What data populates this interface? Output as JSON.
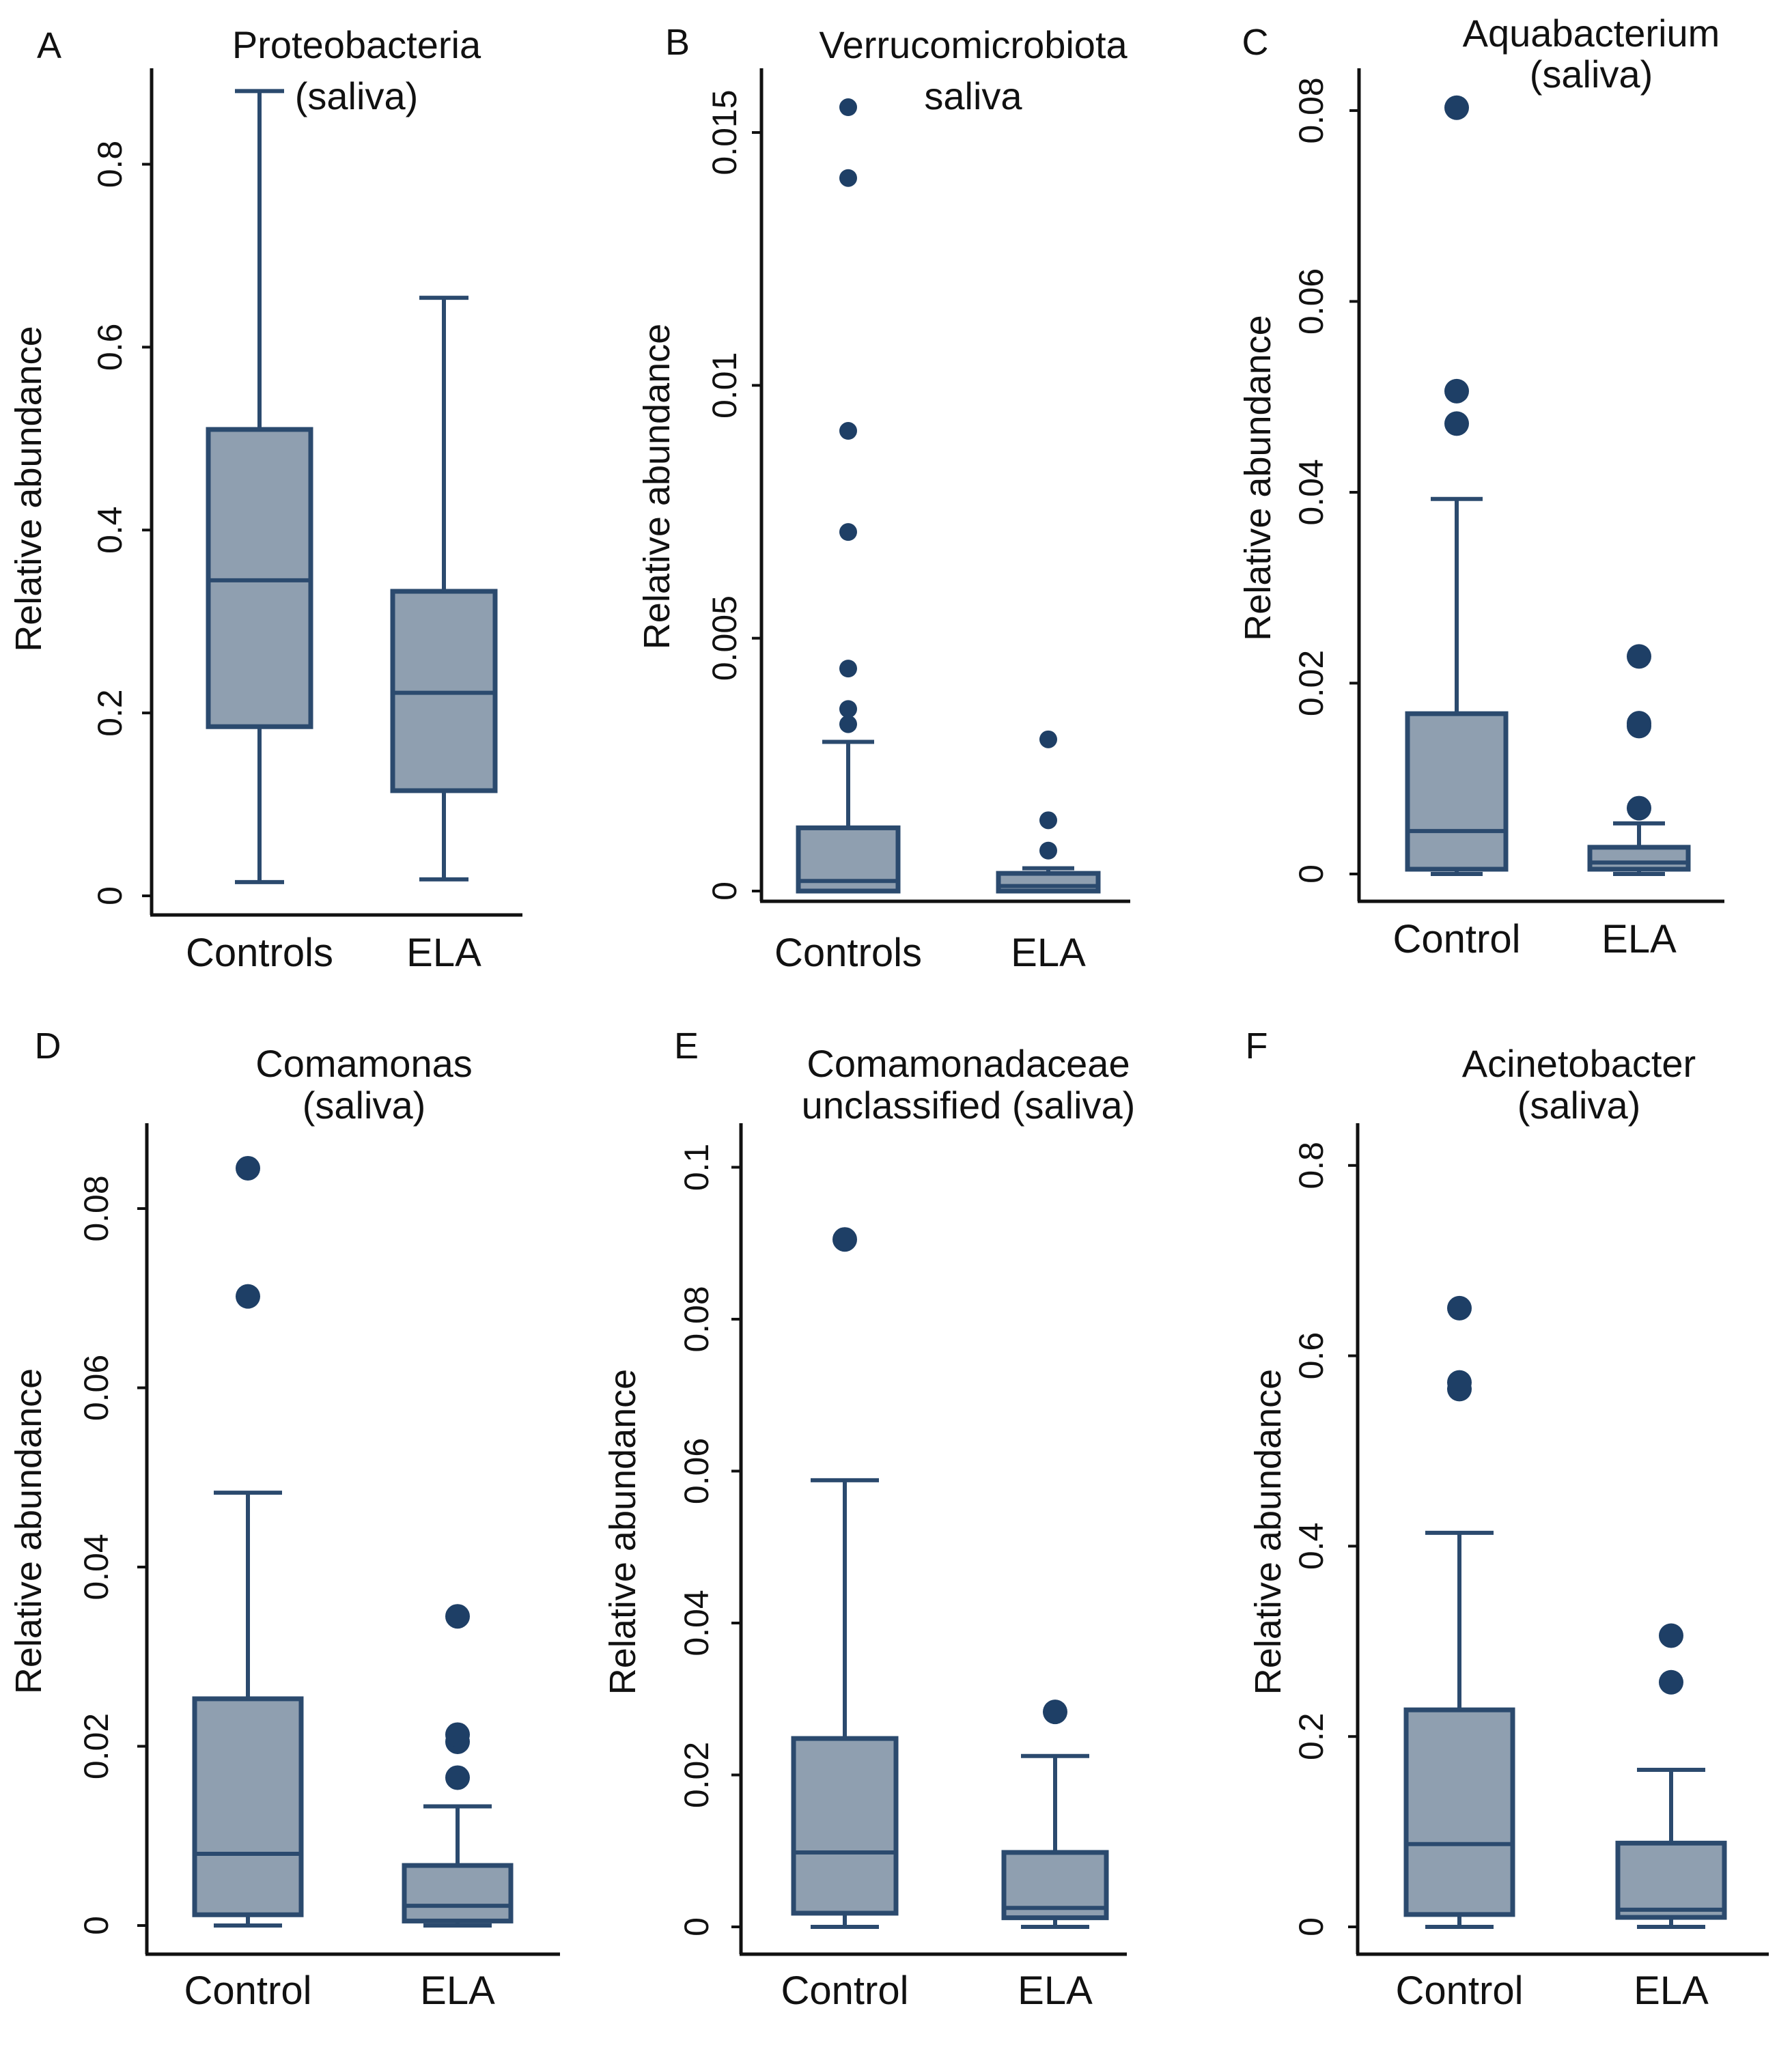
{
  "figure": {
    "box_fill": "#8f9fb0",
    "line_color": "#2b4a6e",
    "outlier_color": "#1e3f66",
    "axis_color": "#111111"
  },
  "chart_data": [
    {
      "panel": "A",
      "type": "box",
      "title_lines": [
        "Proteobacteria",
        "(saliva)"
      ],
      "ylabel": "Relative abundance",
      "categories": [
        "Controls",
        "ELA"
      ],
      "ylim": [
        0,
        0.89
      ],
      "yticks": [
        0,
        0.2,
        0.4,
        0.6,
        0.8
      ],
      "ytick_labels": [
        "0",
        "0.2",
        "0.4",
        "0.6",
        "0.8"
      ],
      "boxes": [
        {
          "group": "Controls",
          "whisker_low": 0.015,
          "q1": 0.185,
          "median": 0.345,
          "q3": 0.51,
          "whisker_high": 0.88,
          "outliers": []
        },
        {
          "group": "ELA",
          "whisker_low": 0.018,
          "q1": 0.115,
          "median": 0.222,
          "q3": 0.333,
          "whisker_high": 0.654,
          "outliers": []
        }
      ]
    },
    {
      "panel": "B",
      "type": "box",
      "title_lines": [
        "Verrucomicrobiota",
        "saliva"
      ],
      "ylabel": "Relative abundance",
      "categories": [
        "Controls",
        "ELA"
      ],
      "ylim": [
        0,
        0.016
      ],
      "yticks": [
        0,
        0.005,
        0.01,
        0.015
      ],
      "ytick_labels": [
        "0",
        "0.005",
        "0.01",
        "0.015"
      ],
      "boxes": [
        {
          "group": "Controls",
          "whisker_low": 0,
          "q1": 0,
          "median": 0.0002,
          "q3": 0.00125,
          "whisker_high": 0.00295,
          "outliers": [
            0.0033,
            0.0036,
            0.0044,
            0.0071,
            0.0091,
            0.0141,
            0.0155
          ]
        },
        {
          "group": "ELA",
          "whisker_low": 0,
          "q1": 0,
          "median": 0.0001,
          "q3": 0.00035,
          "whisker_high": 0.00045,
          "outliers": [
            0.0008,
            0.0014,
            0.003
          ]
        }
      ]
    },
    {
      "panel": "C",
      "type": "box",
      "title_lines": [
        "Aquabacterium",
        "(saliva)"
      ],
      "ylabel": "Relative abundance",
      "categories": [
        "Control",
        "ELA"
      ],
      "ylim": [
        0,
        0.083
      ],
      "yticks": [
        0,
        0.02,
        0.04,
        0.06,
        0.08
      ],
      "ytick_labels": [
        "0",
        "0.02",
        "0.04",
        "0.06",
        "0.08"
      ],
      "boxes": [
        {
          "group": "Control",
          "whisker_low": 0,
          "q1": 0.0005,
          "median": 0.0045,
          "q3": 0.0168,
          "whisker_high": 0.0393,
          "outliers": [
            0.0472,
            0.0506,
            0.0803
          ]
        },
        {
          "group": "ELA",
          "whisker_low": 0,
          "q1": 0.0005,
          "median": 0.0012,
          "q3": 0.0028,
          "whisker_high": 0.0053,
          "outliers": [
            0.0069,
            0.0155,
            0.0158,
            0.0228
          ]
        }
      ]
    },
    {
      "panel": "D",
      "type": "box",
      "title_lines": [
        "Comamonas",
        "(saliva)"
      ],
      "ylabel": "Relative abundance",
      "categories": [
        "Control",
        "ELA"
      ],
      "ylim": [
        0,
        0.088
      ],
      "yticks": [
        0,
        0.02,
        0.04,
        0.06,
        0.08
      ],
      "ytick_labels": [
        "0",
        "0.02",
        "0.04",
        "0.06",
        "0.08"
      ],
      "boxes": [
        {
          "group": "Control",
          "whisker_low": 0,
          "q1": 0.0012,
          "median": 0.008,
          "q3": 0.0253,
          "whisker_high": 0.0483,
          "outliers": [
            0.0702,
            0.0845
          ]
        },
        {
          "group": "ELA",
          "whisker_low": 0,
          "q1": 0.0005,
          "median": 0.0022,
          "q3": 0.0067,
          "whisker_high": 0.0133,
          "outliers": [
            0.0165,
            0.0205,
            0.0213,
            0.0345
          ]
        }
      ]
    },
    {
      "panel": "E",
      "type": "box",
      "title_lines": [
        "Comamonadaceae",
        "unclassified (saliva)"
      ],
      "ylabel": "Relative abundance",
      "categories": [
        "Control",
        "ELA"
      ],
      "ylim": [
        0,
        0.104
      ],
      "yticks": [
        0,
        0.02,
        0.04,
        0.06,
        0.08,
        0.1
      ],
      "ytick_labels": [
        "0",
        "0.02",
        "0.04",
        "0.06",
        "0.08",
        "0.1"
      ],
      "boxes": [
        {
          "group": "Control",
          "whisker_low": 0,
          "q1": 0.0018,
          "median": 0.0098,
          "q3": 0.0248,
          "whisker_high": 0.0588,
          "outliers": [
            0.0905
          ]
        },
        {
          "group": "ELA",
          "whisker_low": 0,
          "q1": 0.0012,
          "median": 0.0025,
          "q3": 0.0098,
          "whisker_high": 0.0225,
          "outliers": [
            0.0283
          ]
        }
      ]
    },
    {
      "panel": "F",
      "type": "box",
      "title_lines": [
        "Acinetobacter",
        "(saliva)"
      ],
      "ylabel": "Relative abundance",
      "categories": [
        "Control",
        "ELA"
      ],
      "ylim": [
        0,
        0.83
      ],
      "yticks": [
        0,
        0.2,
        0.4,
        0.6,
        0.8
      ],
      "ytick_labels": [
        "0",
        "0.2",
        "0.4",
        "0.6",
        "0.8"
      ],
      "boxes": [
        {
          "group": "Control",
          "whisker_low": 0,
          "q1": 0.013,
          "median": 0.087,
          "q3": 0.228,
          "whisker_high": 0.414,
          "outliers": [
            0.565,
            0.572,
            0.65
          ]
        },
        {
          "group": "ELA",
          "whisker_low": 0,
          "q1": 0.01,
          "median": 0.018,
          "q3": 0.088,
          "whisker_high": 0.165,
          "outliers": [
            0.257,
            0.306
          ]
        }
      ]
    }
  ]
}
